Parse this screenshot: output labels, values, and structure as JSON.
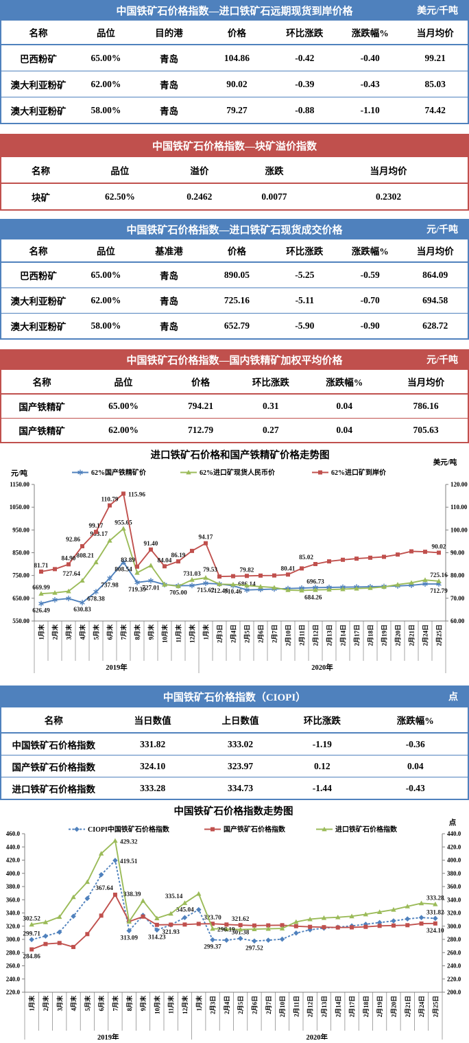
{
  "report": {
    "colors": {
      "blue_header": "#4f81bd",
      "red_header": "#c0504d",
      "series_blue": "#4f81bd",
      "series_green": "#9bbb59",
      "series_red": "#c0504d",
      "axis_gray": "#7f7f7f"
    },
    "tables": [
      {
        "title": "中国铁矿石价格指数—进口铁矿石远期现货到岸价格",
        "unit": "美元/千吨",
        "headers": [
          "名称",
          "品位",
          "目的港",
          "价格",
          "环比涨跌",
          "涨跌幅%",
          "当月均价"
        ],
        "rows": [
          [
            "巴西粉矿",
            "65.00%",
            "青岛",
            "104.86",
            "-0.42",
            "-0.40",
            "99.21"
          ],
          [
            "澳大利亚粉矿",
            "62.00%",
            "青岛",
            "90.02",
            "-0.39",
            "-0.43",
            "85.03"
          ],
          [
            "澳大利亚粉矿",
            "58.00%",
            "青岛",
            "79.27",
            "-0.88",
            "-1.10",
            "74.42"
          ]
        ]
      },
      {
        "title": "中国铁矿石价格指数—块矿溢价指数",
        "unit": "",
        "headers": [
          "名称",
          "品位",
          "溢价",
          "涨跌",
          "当月均价"
        ],
        "rows": [
          [
            "块矿",
            "62.50%",
            "0.2462",
            "0.0077",
            "0.2302"
          ]
        ]
      },
      {
        "title": "中国铁矿石价格指数—进口铁矿石现货成交价格",
        "unit": "元/千吨",
        "headers": [
          "名称",
          "品位",
          "基准港",
          "价格",
          "环比涨跌",
          "涨跌幅%",
          "当月均价"
        ],
        "rows": [
          [
            "巴西粉矿",
            "65.00%",
            "青岛",
            "890.05",
            "-5.25",
            "-0.59",
            "864.09"
          ],
          [
            "澳大利亚粉矿",
            "62.00%",
            "青岛",
            "725.16",
            "-5.11",
            "-0.70",
            "694.58"
          ],
          [
            "澳大利亚粉矿",
            "58.00%",
            "青岛",
            "652.79",
            "-5.90",
            "-0.90",
            "628.72"
          ]
        ]
      },
      {
        "title": "中国铁矿石价格指数—国内铁精矿加权平均价格",
        "unit": "元/千吨",
        "headers": [
          "名称",
          "品位",
          "价格",
          "环比涨跌",
          "涨跌幅%",
          "当月均价"
        ],
        "rows": [
          [
            "国产铁精矿",
            "65.00%",
            "794.21",
            "0.31",
            "0.04",
            "786.16"
          ],
          [
            "国产铁精矿",
            "62.00%",
            "712.79",
            "0.27",
            "0.04",
            "705.63"
          ]
        ]
      },
      {
        "title": "中国铁矿石价格指数（CIOPI）",
        "unit": "点",
        "headers": [
          "名称",
          "当日数值",
          "上日数值",
          "环比涨跌",
          "涨跌幅%"
        ],
        "rows": [
          [
            "中国铁矿石价格指数",
            "331.82",
            "333.02",
            "-1.19",
            "-0.36"
          ],
          [
            "国产铁矿石价格指数",
            "324.10",
            "323.97",
            "0.12",
            "0.04"
          ],
          [
            "进口铁矿石价格指数",
            "333.28",
            "334.73",
            "-1.44",
            "-0.43"
          ]
        ]
      }
    ]
  },
  "chart_data": [
    {
      "type": "line",
      "title": "进口铁矿石价格和国产铁精矿价格走势图",
      "left_axis": {
        "label": "元/吨",
        "min": 550,
        "max": 1150,
        "ticks": [
          "1150.00",
          "1050.00",
          "950.00",
          "850.00",
          "750.00",
          "650.00",
          "550.00"
        ]
      },
      "right_axis": {
        "label": "美元/吨",
        "min": 60,
        "max": 120,
        "ticks": [
          "120.00",
          "110.00",
          "100.00",
          "90.00",
          "80.00",
          "70.00",
          "60.00"
        ]
      },
      "categories": [
        "1月末",
        "2月末",
        "3月末",
        "4月末",
        "5月末",
        "6月末",
        "7月末",
        "8月末",
        "9月末",
        "10月末",
        "11月末",
        "12月末",
        "1月末",
        "2月3日",
        "2月4日",
        "2月5日",
        "2月6日",
        "2月7日",
        "2月10日",
        "2月11日",
        "2月12日",
        "2月13日",
        "2月14日",
        "2月17日",
        "2月18日",
        "2月19日",
        "2月20日",
        "2月21日",
        "2月24日",
        "2月25日"
      ],
      "year_groups": [
        {
          "label": "2019年",
          "count": 12
        },
        {
          "label": "2020年",
          "count": 18
        }
      ],
      "legend_position": "top",
      "grid": false,
      "series": [
        {
          "name": "62%国产铁精矿价",
          "color": "#4f81bd",
          "axis": "left",
          "marker": "star",
          "dash": false,
          "values": [
            626.49,
            643.0,
            649.0,
            630.83,
            678.38,
            737.98,
            808.54,
            719.39,
            727.01,
            710.0,
            705.0,
            706.0,
            715.62,
            712.46,
            705.0,
            686.14,
            688.5,
            690.5,
            692.5,
            694.5,
            696.73,
            697.5,
            698.5,
            699.5,
            700.5,
            702.0,
            704.0,
            707.0,
            712.52,
            712.79
          ],
          "point_labels": {
            "0": [
              "626.49",
              "b"
            ],
            "3": [
              "630.83",
              "b"
            ],
            "4": [
              "678.38",
              "b"
            ],
            "5": [
              "737.98",
              "b"
            ],
            "6": [
              "808.54",
              "b"
            ],
            "7": [
              "719.39",
              "b"
            ],
            "8": [
              "727.01",
              "b"
            ],
            "10": [
              "705.00",
              "b"
            ],
            "12": [
              "715.62",
              "b"
            ],
            "13": [
              "712.46",
              "b"
            ],
            "15": [
              "686.14",
              "a"
            ],
            "20": [
              "696.73",
              "a"
            ],
            "29": [
              "712.79",
              "b"
            ]
          }
        },
        {
          "name": "62%进口矿现货人民币价",
          "color": "#9bbb59",
          "axis": "left",
          "marker": "triangle",
          "dash": false,
          "values": [
            669.99,
            674.0,
            681.0,
            727.64,
            808.21,
            903.17,
            955.65,
            762.0,
            794.0,
            710.0,
            703.0,
            731.03,
            740.0,
            712.0,
            710.46,
            706.0,
            701.0,
            697.0,
            686.0,
            684.26,
            686.5,
            688.0,
            690.0,
            692.5,
            695.0,
            700.0,
            710.0,
            718.0,
            730.27,
            725.16
          ],
          "point_labels": {
            "0": [
              "669.99",
              "a"
            ],
            "3": [
              "727.64",
              "al"
            ],
            "4": [
              "808.21",
              "al"
            ],
            "5": [
              "903.17",
              "al"
            ],
            "6": [
              "955.65",
              "a"
            ],
            "11": [
              "731.03",
              "a"
            ],
            "14": [
              "710.46",
              "b"
            ],
            "19": [
              "684.26",
              "br"
            ],
            "29": [
              "725.16",
              "a"
            ]
          }
        },
        {
          "name": "62%进口矿到岸价",
          "color": "#c0504d",
          "axis": "right",
          "marker": "square",
          "dash": false,
          "values": [
            81.71,
            82.8,
            84.9,
            92.86,
            99.17,
            110.79,
            115.96,
            83.89,
            91.4,
            84.04,
            86.19,
            90.8,
            94.17,
            79.53,
            79.7,
            79.82,
            79.95,
            80.0,
            80.41,
            83.1,
            85.02,
            86.2,
            86.9,
            87.4,
            87.8,
            88.2,
            89.2,
            90.6,
            90.41,
            90.02
          ],
          "point_labels": {
            "0": [
              "81.71",
              "a"
            ],
            "2": [
              "84.90",
              "a"
            ],
            "3": [
              "92.86",
              "al"
            ],
            "4": [
              "99.17",
              "a"
            ],
            "5": [
              "110.79",
              "a"
            ],
            "6": [
              "115.96",
              "r"
            ],
            "7": [
              "83.89",
              "al"
            ],
            "8": [
              "91.40",
              "a"
            ],
            "9": [
              "84.04",
              "a"
            ],
            "10": [
              "86.19",
              "a"
            ],
            "12": [
              "94.17",
              "a"
            ],
            "13": [
              "79.53",
              "al"
            ],
            "15": [
              "79.82",
              "a"
            ],
            "18": [
              "80.41",
              "a"
            ],
            "20": [
              "85.02",
              "al"
            ],
            "29": [
              "90.02",
              "a"
            ]
          }
        }
      ]
    },
    {
      "type": "line",
      "title": "中国铁矿石价格指数走势图",
      "left_axis": {
        "label": "",
        "min": 220,
        "max": 460,
        "ticks": [
          "460.0",
          "440.0",
          "420.0",
          "400.0",
          "380.0",
          "360.0",
          "340.0",
          "320.0",
          "300.0",
          "280.0",
          "260.0",
          "240.0",
          "220.0"
        ]
      },
      "right_axis": {
        "label": "点",
        "min": 200,
        "max": 440,
        "ticks": [
          "440.0",
          "420.0",
          "400.0",
          "380.0",
          "360.0",
          "340.0",
          "320.0",
          "300.0",
          "280.0",
          "260.0",
          "240.0",
          "220.0",
          "200.0"
        ]
      },
      "categories": [
        "1月末",
        "2月末",
        "3月末",
        "4月末",
        "5月末",
        "6月末",
        "7月末",
        "8月末",
        "9月末",
        "10月末",
        "11月末",
        "12月末",
        "1月末",
        "2月3日",
        "2月4日",
        "2月5日",
        "2月6日",
        "2月7日",
        "2月10日",
        "2月11日",
        "2月12日",
        "2月13日",
        "2月14日",
        "2月17日",
        "2月18日",
        "2月19日",
        "2月20日",
        "2月21日",
        "2月24日",
        "2月25日"
      ],
      "year_groups": [
        {
          "label": "2019年",
          "count": 12
        },
        {
          "label": "2020年",
          "count": 18
        }
      ],
      "legend_position": "top",
      "grid": false,
      "series": [
        {
          "name": "CIOPI中国铁矿石价格指数",
          "color": "#4f81bd",
          "axis": "left",
          "marker": "diamond",
          "dash": true,
          "values": [
            299.71,
            305.0,
            311.0,
            335.0,
            362.0,
            398.0,
            419.51,
            313.09,
            336.5,
            314.23,
            321.93,
            333.0,
            345.04,
            299.37,
            298.8,
            301.38,
            297.52,
            298.8,
            300.3,
            309.5,
            314.5,
            317.0,
            318.5,
            320.5,
            323.0,
            325.5,
            328.0,
            331.0,
            333.02,
            331.82
          ],
          "point_labels": {
            "0": [
              "299.71",
              "a"
            ],
            "6": [
              "419.51",
              "r"
            ],
            "7": [
              "313.09",
              "b"
            ],
            "9": [
              "314.23",
              "b"
            ],
            "10": [
              "321.93",
              "b"
            ],
            "12": [
              "345.04",
              "l"
            ],
            "13": [
              "299.37",
              "b"
            ],
            "15": [
              "301.38",
              "a"
            ],
            "16": [
              "297.52",
              "b"
            ],
            "29": [
              "331.82",
              "a"
            ]
          }
        },
        {
          "name": "国产铁矿石价格指数",
          "color": "#c0504d",
          "axis": "left",
          "marker": "square",
          "dash": false,
          "values": [
            284.86,
            293.0,
            294.5,
            288.5,
            308.0,
            336.0,
            367.64,
            327.0,
            334.5,
            322.0,
            322.3,
            322.5,
            323.5,
            323.7,
            322.5,
            321.62,
            321.0,
            321.2,
            321.5,
            320.0,
            319.0,
            318.5,
            318.0,
            318.2,
            319.0,
            320.5,
            321.0,
            321.5,
            323.97,
            324.1
          ],
          "point_labels": {
            "0": [
              "284.86",
              "b"
            ],
            "6": [
              "367.64",
              "al"
            ],
            "13": [
              "323.70",
              "a"
            ],
            "15": [
              "321.62",
              "a"
            ],
            "29": [
              "324.10",
              "b"
            ]
          }
        },
        {
          "name": "进口铁矿石价格指数",
          "color": "#9bbb59",
          "axis": "right",
          "marker": "triangle",
          "dash": false,
          "values": [
            302.52,
            306.0,
            314.0,
            344.0,
            367.0,
            410.0,
            429.32,
            307.0,
            338.39,
            312.0,
            319.0,
            335.14,
            349.0,
            296.19,
            295.5,
            295.0,
            295.5,
            296.0,
            296.5,
            306.5,
            310.5,
            312.5,
            313.5,
            315.0,
            318.0,
            321.5,
            325.0,
            330.0,
            334.73,
            333.28
          ],
          "point_labels": {
            "0": [
              "302.52",
              "a"
            ],
            "6": [
              "429.32",
              "r"
            ],
            "8": [
              "338.39",
              "al"
            ],
            "11": [
              "335.14",
              "al"
            ],
            "13": [
              "296.19",
              "r"
            ],
            "29": [
              "333.28",
              "a"
            ]
          }
        }
      ]
    }
  ]
}
